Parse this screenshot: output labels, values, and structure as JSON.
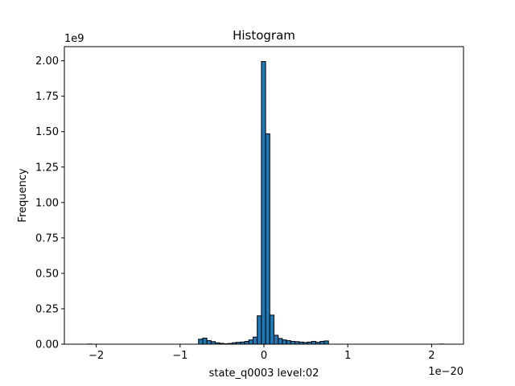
{
  "chart_data": {
    "type": "bar",
    "title": "Histogram",
    "xlabel": "state_q0003 level:02",
    "ylabel": "Frequency",
    "x_scale_label": "1e−20",
    "y_scale_label": "1e9",
    "xlim": [
      -2.38,
      2.38
    ],
    "ylim": [
      0,
      2.1
    ],
    "x_ticks": [
      -2,
      -1,
      0,
      1,
      2
    ],
    "x_tick_labels": [
      "−2",
      "−1",
      "0",
      "1",
      "2"
    ],
    "y_ticks": [
      0,
      0.25,
      0.5,
      0.75,
      1.0,
      1.25,
      1.5,
      1.75,
      2.0
    ],
    "y_tick_labels": [
      "0.00",
      "0.25",
      "0.50",
      "0.75",
      "1.00",
      "1.25",
      "1.50",
      "1.75",
      "2.00"
    ],
    "bar_color": "#1f77b4",
    "edge_color": "#000000",
    "bins": [
      {
        "x0": -2.1,
        "x1": -2.05,
        "value": 0.001
      },
      {
        "x0": -0.78,
        "x1": -0.73,
        "value": 0.035
      },
      {
        "x0": -0.73,
        "x1": -0.68,
        "value": 0.043
      },
      {
        "x0": -0.68,
        "x1": -0.63,
        "value": 0.025
      },
      {
        "x0": -0.63,
        "x1": -0.58,
        "value": 0.018
      },
      {
        "x0": -0.58,
        "x1": -0.53,
        "value": 0.01
      },
      {
        "x0": -0.53,
        "x1": -0.48,
        "value": 0.006
      },
      {
        "x0": -0.48,
        "x1": -0.43,
        "value": 0.003
      },
      {
        "x0": -0.43,
        "x1": -0.38,
        "value": 0.005
      },
      {
        "x0": -0.38,
        "x1": -0.33,
        "value": 0.01
      },
      {
        "x0": -0.33,
        "x1": -0.28,
        "value": 0.013
      },
      {
        "x0": -0.28,
        "x1": -0.23,
        "value": 0.015
      },
      {
        "x0": -0.23,
        "x1": -0.18,
        "value": 0.02
      },
      {
        "x0": -0.18,
        "x1": -0.13,
        "value": 0.03
      },
      {
        "x0": -0.13,
        "x1": -0.08,
        "value": 0.05
      },
      {
        "x0": -0.08,
        "x1": -0.03,
        "value": 0.2
      },
      {
        "x0": -0.03,
        "x1": 0.02,
        "value": 1.995
      },
      {
        "x0": 0.02,
        "x1": 0.07,
        "value": 1.485
      },
      {
        "x0": 0.07,
        "x1": 0.12,
        "value": 0.205
      },
      {
        "x0": 0.12,
        "x1": 0.17,
        "value": 0.063
      },
      {
        "x0": 0.17,
        "x1": 0.22,
        "value": 0.04
      },
      {
        "x0": 0.22,
        "x1": 0.27,
        "value": 0.03
      },
      {
        "x0": 0.27,
        "x1": 0.32,
        "value": 0.025
      },
      {
        "x0": 0.32,
        "x1": 0.37,
        "value": 0.02
      },
      {
        "x0": 0.37,
        "x1": 0.42,
        "value": 0.018
      },
      {
        "x0": 0.42,
        "x1": 0.47,
        "value": 0.015
      },
      {
        "x0": 0.47,
        "x1": 0.52,
        "value": 0.012
      },
      {
        "x0": 0.52,
        "x1": 0.57,
        "value": 0.015
      },
      {
        "x0": 0.57,
        "x1": 0.62,
        "value": 0.02
      },
      {
        "x0": 0.62,
        "x1": 0.67,
        "value": 0.013
      },
      {
        "x0": 0.67,
        "x1": 0.72,
        "value": 0.02
      },
      {
        "x0": 0.72,
        "x1": 0.77,
        "value": 0.023
      },
      {
        "x0": 2.1,
        "x1": 2.15,
        "value": 0.001
      }
    ]
  }
}
